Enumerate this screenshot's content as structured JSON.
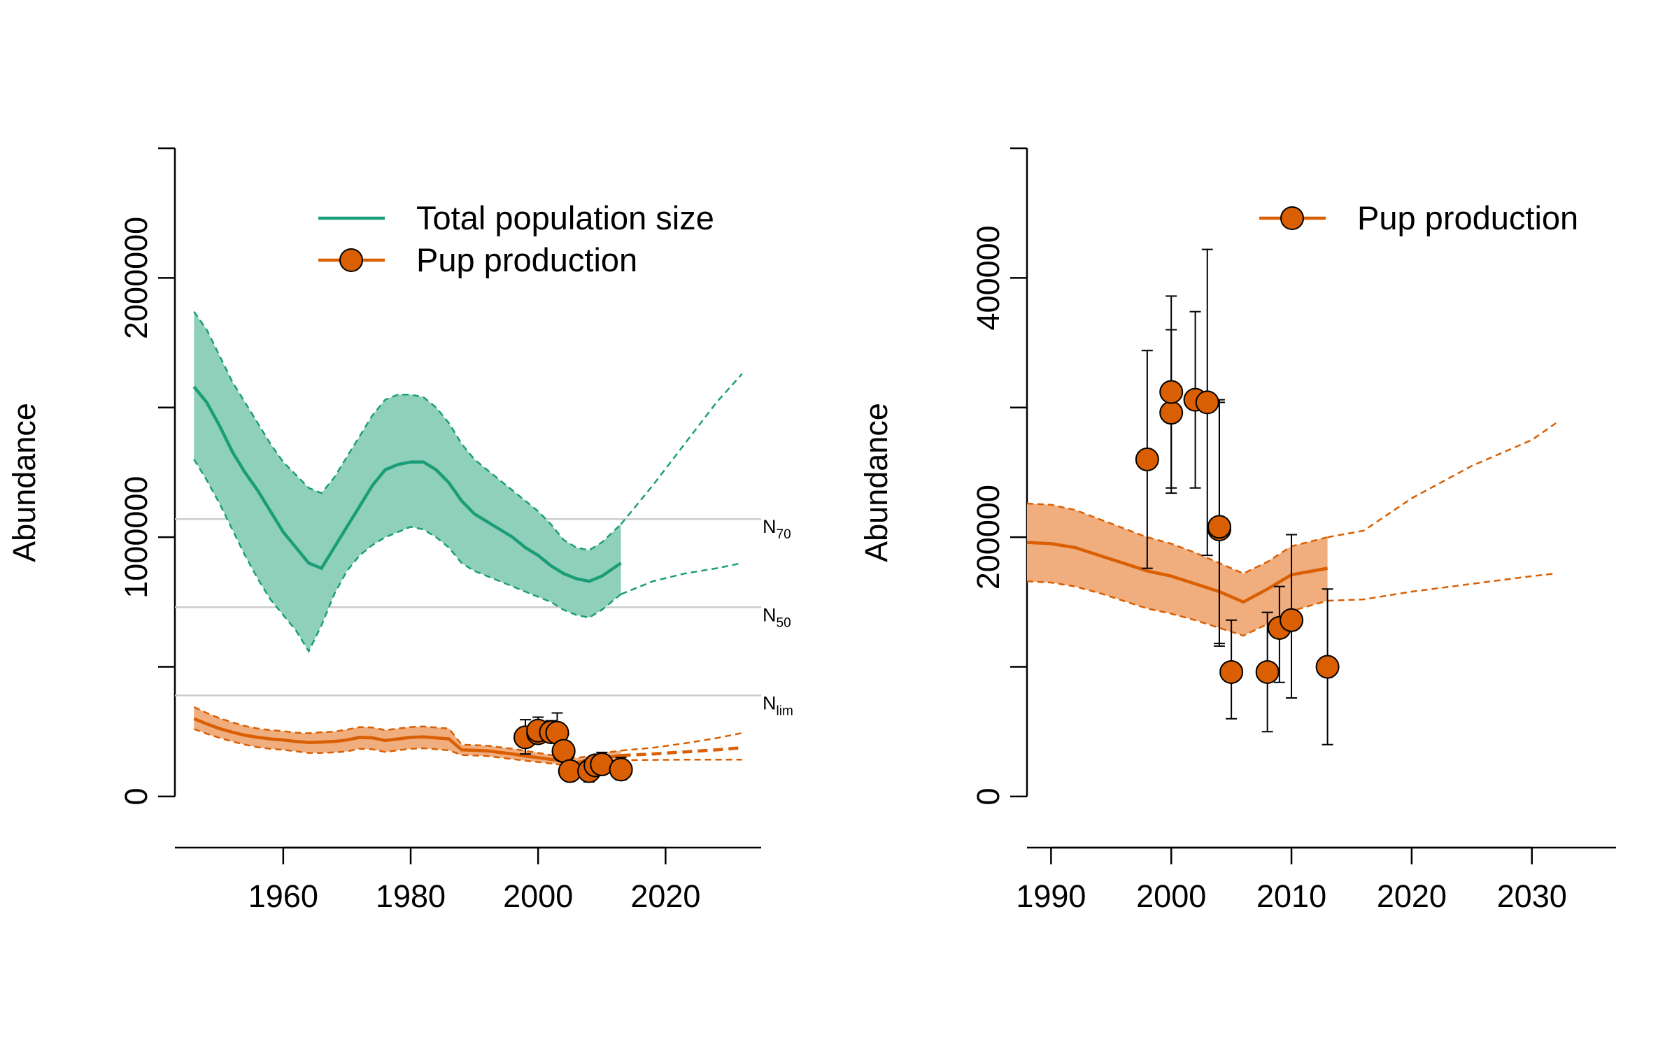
{
  "chart_data": [
    {
      "type": "line",
      "ylabel": "Abundance",
      "xlim": [
        1943,
        2035
      ],
      "ylim": [
        -100000,
        2500000
      ],
      "xticks": [
        1960,
        1980,
        2000,
        2020
      ],
      "yticks": [
        0,
        500000,
        1000000,
        1500000,
        2000000,
        2500000
      ],
      "ytick_labels": [
        "0",
        "",
        "1000000",
        "",
        "2000000",
        ""
      ],
      "colors": {
        "total": "#1b9e77",
        "total_band": "#8fd0bb",
        "pup": "#d95f02",
        "pup_band": "#f0ad7e",
        "refline": "#cccccc"
      },
      "legend": {
        "position": "top-right",
        "entries": [
          "Total population size",
          "Pup production"
        ]
      },
      "reference_lines": [
        {
          "label": "N",
          "sub": "70",
          "y": 1070000
        },
        {
          "label": "N",
          "sub": "50",
          "y": 730000
        },
        {
          "label": "N",
          "sub": "lim",
          "y": 390000
        }
      ],
      "series": [
        {
          "name": "Total population size",
          "x": [
            1946,
            1948,
            1950,
            1952,
            1954,
            1956,
            1958,
            1960,
            1962,
            1964,
            1966,
            1968,
            1970,
            1972,
            1974,
            1976,
            1978,
            1980,
            1982,
            1984,
            1986,
            1988,
            1990,
            1992,
            1994,
            1996,
            1998,
            2000,
            2002,
            2004,
            2006,
            2008,
            2010,
            2013
          ],
          "mean": [
            1580000,
            1520000,
            1430000,
            1330000,
            1250000,
            1180000,
            1100000,
            1020000,
            960000,
            900000,
            880000,
            960000,
            1040000,
            1120000,
            1200000,
            1260000,
            1280000,
            1290000,
            1290000,
            1260000,
            1210000,
            1140000,
            1090000,
            1060000,
            1030000,
            1000000,
            960000,
            930000,
            890000,
            860000,
            840000,
            830000,
            850000,
            900000
          ],
          "lower": [
            1300000,
            1220000,
            1130000,
            1030000,
            930000,
            840000,
            760000,
            700000,
            640000,
            560000,
            660000,
            780000,
            870000,
            930000,
            970000,
            1000000,
            1020000,
            1040000,
            1030000,
            1000000,
            960000,
            900000,
            870000,
            850000,
            830000,
            810000,
            790000,
            770000,
            750000,
            720000,
            700000,
            690000,
            720000,
            780000
          ],
          "upper": [
            1870000,
            1800000,
            1700000,
            1600000,
            1520000,
            1440000,
            1360000,
            1290000,
            1240000,
            1190000,
            1170000,
            1230000,
            1310000,
            1390000,
            1470000,
            1530000,
            1550000,
            1550000,
            1540000,
            1500000,
            1440000,
            1360000,
            1300000,
            1260000,
            1220000,
            1180000,
            1140000,
            1100000,
            1050000,
            990000,
            960000,
            950000,
            980000,
            1050000
          ],
          "projection_x": [
            2013,
            2018,
            2023,
            2028,
            2032
          ],
          "projection_upper": [
            1050000,
            1200000,
            1360000,
            1520000,
            1630000
          ],
          "projection_lower": [
            780000,
            830000,
            860000,
            880000,
            900000
          ]
        },
        {
          "name": "Pup production",
          "x": [
            1946,
            1948,
            1950,
            1952,
            1954,
            1956,
            1958,
            1960,
            1962,
            1964,
            1966,
            1968,
            1970,
            1972,
            1974,
            1976,
            1978,
            1980,
            1982,
            1984,
            1986,
            1988,
            1990,
            1992,
            1994,
            1996,
            1998,
            2000,
            2002,
            2004,
            2006,
            2008,
            2010,
            2013
          ],
          "mean": [
            300000,
            280000,
            262000,
            248000,
            236000,
            228000,
            222000,
            218000,
            212000,
            208000,
            210000,
            212000,
            218000,
            228000,
            226000,
            216000,
            222000,
            228000,
            230000,
            226000,
            222000,
            180000,
            178000,
            176000,
            170000,
            164000,
            156000,
            150000,
            143000,
            137000,
            131000,
            138000,
            148000,
            158000
          ],
          "lower": [
            260000,
            242000,
            226000,
            212000,
            200000,
            190000,
            184000,
            180000,
            174000,
            168000,
            168000,
            170000,
            174000,
            184000,
            182000,
            172000,
            178000,
            184000,
            186000,
            182000,
            178000,
            160000,
            158000,
            156000,
            150000,
            144000,
            138000,
            133000,
            127000,
            121000,
            115000,
            121000,
            130000,
            140000
          ],
          "upper": [
            345000,
            322000,
            302000,
            286000,
            272000,
            262000,
            256000,
            252000,
            246000,
            244000,
            248000,
            250000,
            258000,
            268000,
            266000,
            256000,
            262000,
            268000,
            270000,
            266000,
            262000,
            200000,
            198000,
            196000,
            190000,
            184000,
            176000,
            168000,
            160000,
            154000,
            148000,
            156000,
            167000,
            177000
          ],
          "projection_x": [
            2013,
            2018,
            2023,
            2028,
            2032
          ],
          "projection_mean": [
            158000,
            164000,
            172000,
            180000,
            188000
          ],
          "projection_upper": [
            177000,
            188000,
            205000,
            225000,
            245000
          ],
          "projection_lower": [
            140000,
            141000,
            142000,
            142000,
            142000
          ],
          "observations": [
            {
              "x": 1998,
              "y": 228000,
              "lo": 164000,
              "hi": 296000
            },
            {
              "x": 2000,
              "y": 244000,
              "lo": 214000,
              "hi": 292000
            },
            {
              "x": 2000,
              "y": 254000,
              "lo": 218000,
              "hi": 306000
            },
            {
              "x": 2002,
              "y": 248000,
              "lo": 212000,
              "hi": 292000
            },
            {
              "x": 2003,
              "y": 246000,
              "lo": 172000,
              "hi": 322000
            },
            {
              "x": 2004,
              "y": 174000,
              "lo": 148000,
              "hi": 238000
            },
            {
              "x": 2004,
              "y": 176000,
              "lo": 148000,
              "hi": 240000
            },
            {
              "x": 2005,
              "y": 98000,
              "lo": 64000,
              "hi": 132000
            },
            {
              "x": 2008,
              "y": 98000,
              "lo": 56000,
              "hi": 140000
            },
            {
              "x": 2009,
              "y": 120000,
              "lo": 90000,
              "hi": 148000
            },
            {
              "x": 2010,
              "y": 124000,
              "lo": 86000,
              "hi": 170000
            },
            {
              "x": 2013,
              "y": 104000,
              "lo": 64000,
              "hi": 150000
            }
          ]
        }
      ]
    },
    {
      "type": "line",
      "ylabel": "Abundance",
      "xlim": [
        1988,
        2037
      ],
      "ylim": [
        -20000,
        500000
      ],
      "xticks": [
        1990,
        2000,
        2010,
        2020,
        2030
      ],
      "yticks": [
        0,
        100000,
        200000,
        300000,
        400000,
        500000
      ],
      "ytick_labels": [
        "0",
        "",
        "200000",
        "",
        "400000",
        ""
      ],
      "colors": {
        "pup": "#d95f02",
        "pup_band": "#f0ad7e"
      },
      "legend": {
        "position": "top-right",
        "entries": [
          "Pup production"
        ]
      },
      "series": [
        {
          "name": "Pup production",
          "x": [
            1988,
            1990,
            1992,
            1994,
            1996,
            1998,
            2000,
            2002,
            2004,
            2006,
            2008,
            2010,
            2013
          ],
          "mean": [
            196000,
            195000,
            192000,
            186000,
            180000,
            174000,
            170000,
            164000,
            158000,
            150000,
            160000,
            171000,
            176000
          ],
          "lower": [
            166000,
            165000,
            162000,
            157000,
            151000,
            145000,
            141000,
            136000,
            130000,
            124000,
            133000,
            143000,
            151000
          ],
          "upper": [
            226000,
            225000,
            221000,
            214000,
            207000,
            200000,
            195000,
            188000,
            180000,
            172000,
            181000,
            193000,
            200000
          ],
          "projection_x": [
            2013,
            2016,
            2020,
            2025,
            2030,
            2032
          ],
          "projection_upper": [
            200000,
            205000,
            230000,
            255000,
            275000,
            288000
          ],
          "projection_lower": [
            151000,
            152000,
            158000,
            164000,
            170000,
            172000
          ],
          "observations": [
            {
              "x": 1998,
              "y": 260000,
              "lo": 176000,
              "hi": 344000
            },
            {
              "x": 2000,
              "y": 296000,
              "lo": 234000,
              "hi": 360000
            },
            {
              "x": 2000,
              "y": 312000,
              "lo": 238000,
              "hi": 386000
            },
            {
              "x": 2002,
              "y": 306000,
              "lo": 238000,
              "hi": 374000
            },
            {
              "x": 2003,
              "y": 304000,
              "lo": 186000,
              "hi": 422000
            },
            {
              "x": 2004,
              "y": 206000,
              "lo": 116000,
              "hi": 304000
            },
            {
              "x": 2004,
              "y": 208000,
              "lo": 118000,
              "hi": 306000
            },
            {
              "x": 2005,
              "y": 96000,
              "lo": 60000,
              "hi": 136000
            },
            {
              "x": 2008,
              "y": 96000,
              "lo": 50000,
              "hi": 142000
            },
            {
              "x": 2009,
              "y": 130000,
              "lo": 88000,
              "hi": 162000
            },
            {
              "x": 2010,
              "y": 136000,
              "lo": 76000,
              "hi": 202000
            },
            {
              "x": 2013,
              "y": 100000,
              "lo": 40000,
              "hi": 160000
            }
          ]
        }
      ]
    }
  ]
}
